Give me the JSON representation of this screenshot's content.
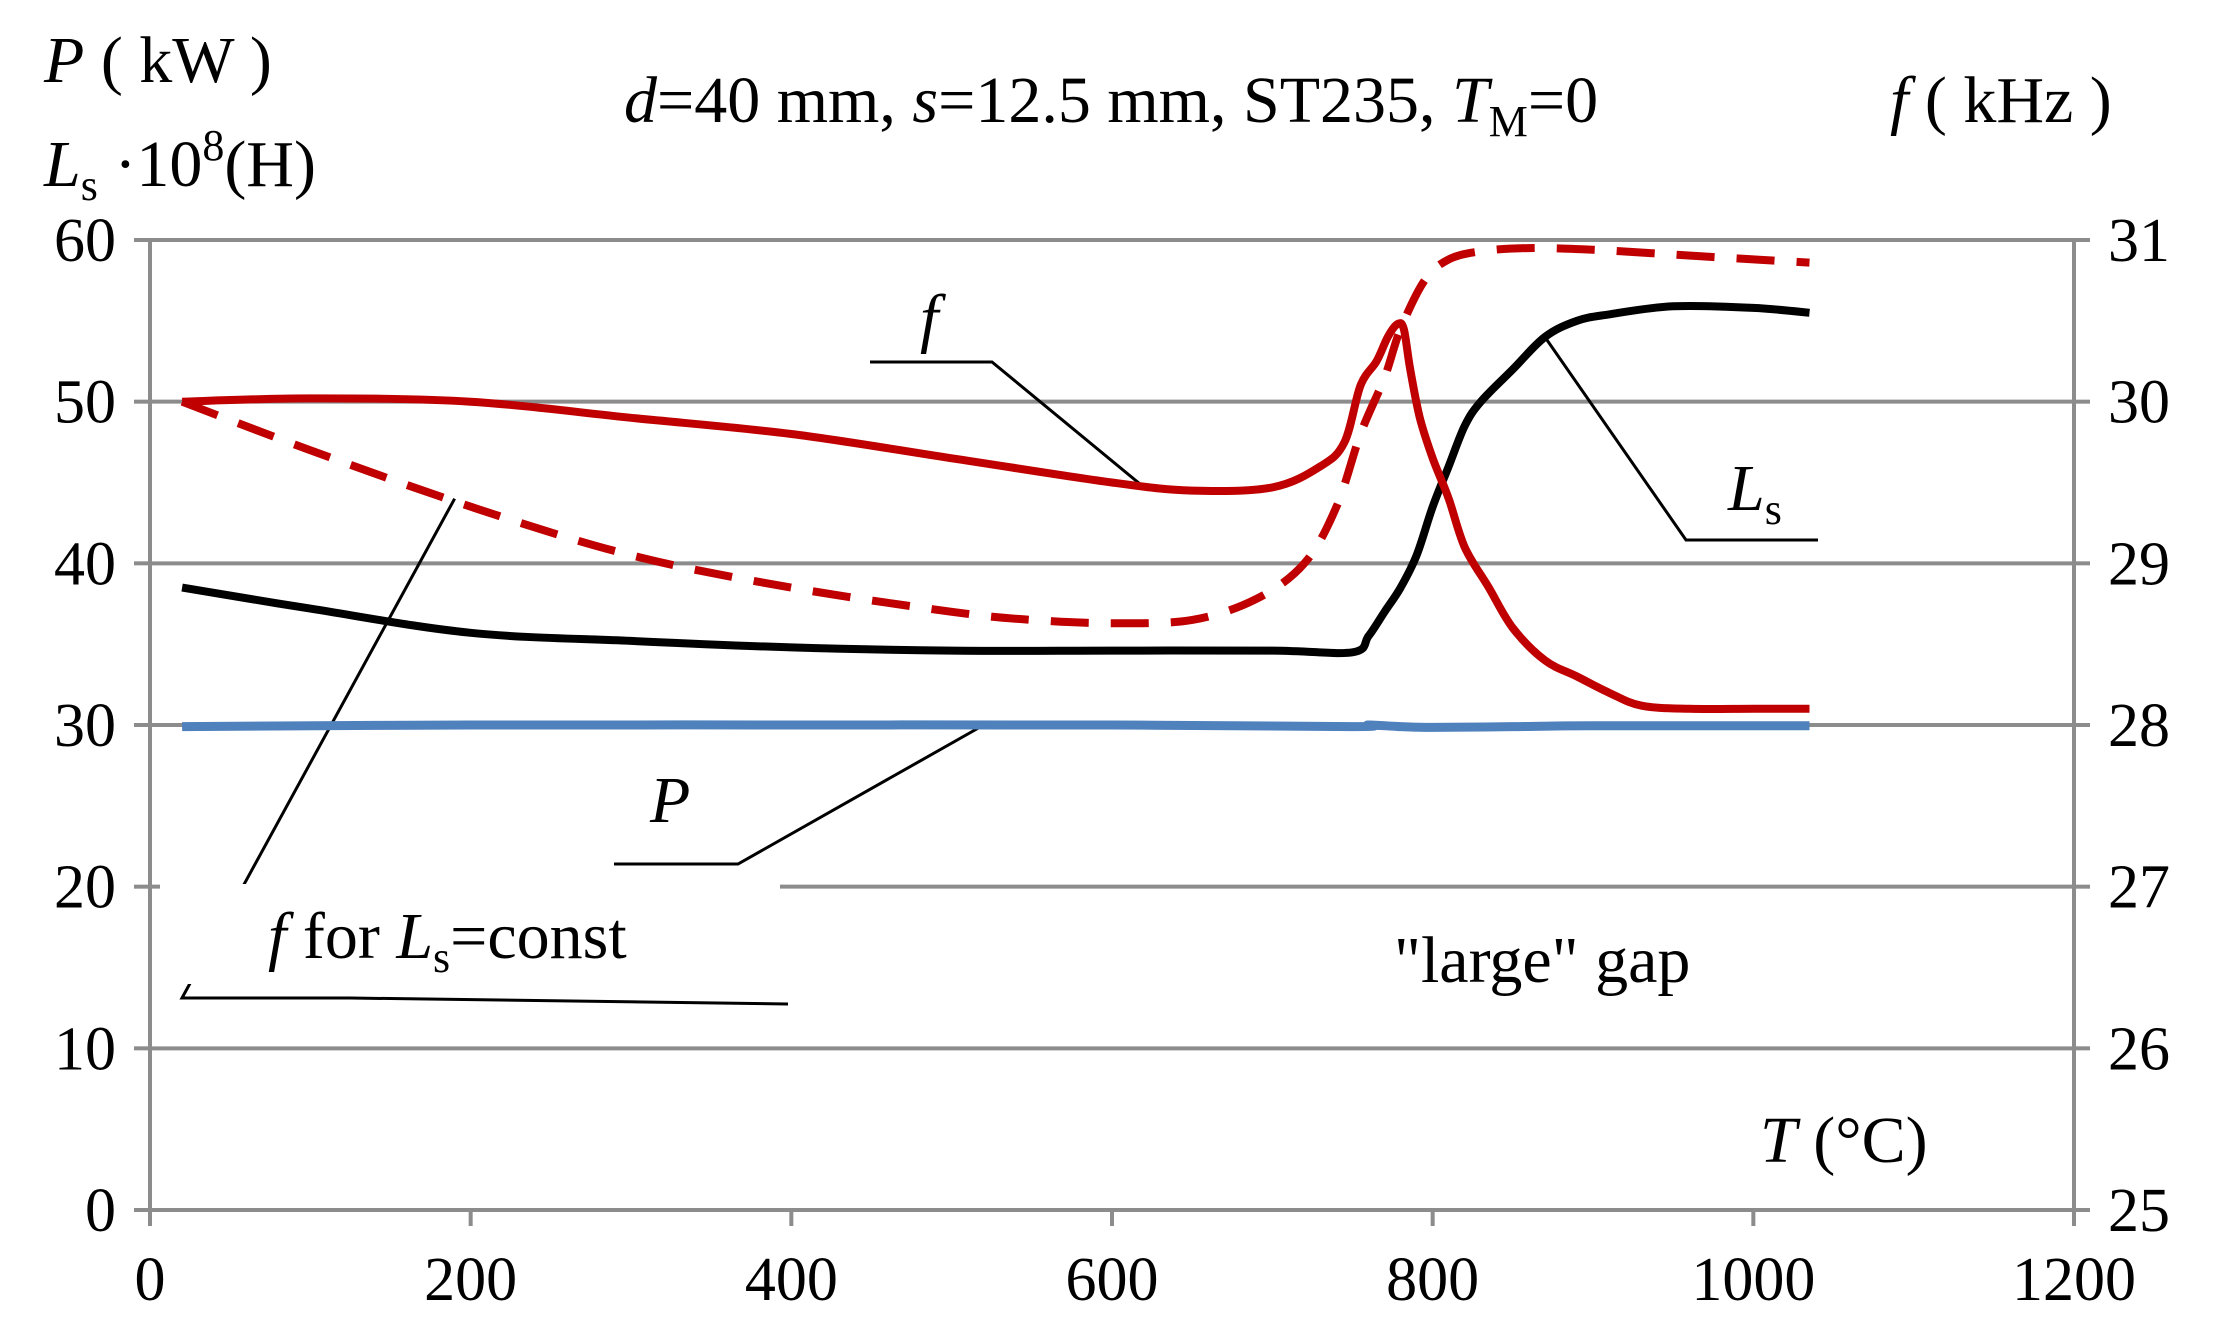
{
  "chart_data": {
    "type": "line",
    "title": "d=40 mm,  s=12.5 mm,  ST235, TM=0",
    "title_parts": {
      "d_sym": "d",
      "d_val": "=40 mm,  ",
      "s_sym": "s",
      "s_val": "=12.5 mm,  ST235, ",
      "t_sym": "T",
      "t_sub": "M",
      "t_val": "=0"
    },
    "left_axis_label": {
      "line1": {
        "sym": "P",
        "unit": " ( kW )"
      },
      "line2": {
        "sym": "L",
        "sub": "s",
        "mid": " ·10",
        "sup": "8",
        "unit": "(H)"
      }
    },
    "right_axis_label": {
      "sym": "f",
      "unit": " ( kHz )"
    },
    "xlabel": {
      "sym": "T",
      "unit": " (°C)"
    },
    "xlim": [
      0,
      1200
    ],
    "ylim_left": [
      0,
      60
    ],
    "ylim_right": [
      25,
      31
    ],
    "x_ticks": [
      0,
      200,
      400,
      600,
      800,
      1000,
      1200
    ],
    "y_left_ticks": [
      0,
      10,
      20,
      30,
      40,
      50,
      60
    ],
    "y_right_ticks": [
      25,
      26,
      27,
      28,
      29,
      30,
      31
    ],
    "grid": true,
    "annotation": "\"large\" gap",
    "series": [
      {
        "name": "f",
        "axis": "right",
        "color": "#c00000",
        "dash": false,
        "label": {
          "sym": "f"
        },
        "x": [
          20,
          100,
          200,
          300,
          400,
          500,
          600,
          650,
          700,
          730,
          745,
          755,
          765,
          772,
          778,
          782,
          786,
          792,
          800,
          810,
          820,
          835,
          850,
          870,
          890,
          910,
          930,
          960,
          1000,
          1035
        ],
        "y": [
          30.0,
          30.02,
          30.0,
          29.9,
          29.8,
          29.65,
          29.5,
          29.45,
          29.47,
          29.6,
          29.75,
          30.1,
          30.25,
          30.4,
          30.48,
          30.45,
          30.2,
          29.9,
          29.65,
          29.4,
          29.1,
          28.85,
          28.6,
          28.4,
          28.3,
          28.2,
          28.12,
          28.1,
          28.1,
          28.1
        ]
      },
      {
        "name": "f for Ls=const",
        "axis": "right",
        "color": "#c00000",
        "dash": true,
        "label": {
          "sym": "f",
          "mid": "  for  ",
          "sym2": "L",
          "sub": "s",
          "tail": "=const"
        },
        "x": [
          20,
          100,
          200,
          300,
          400,
          500,
          550,
          600,
          650,
          690,
          720,
          740,
          755,
          770,
          780,
          795,
          810,
          830,
          860,
          900,
          950,
          1000,
          1035
        ],
        "y": [
          30.0,
          29.7,
          29.35,
          29.05,
          28.85,
          28.7,
          28.65,
          28.63,
          28.65,
          28.78,
          29.0,
          29.35,
          29.8,
          30.15,
          30.45,
          30.75,
          30.88,
          30.93,
          30.95,
          30.94,
          30.91,
          30.88,
          30.86
        ]
      },
      {
        "name": "Ls",
        "axis": "left",
        "color": "#000000",
        "dash": false,
        "label": {
          "sym": "L",
          "sub": "s"
        },
        "x": [
          20,
          100,
          200,
          300,
          400,
          500,
          600,
          700,
          750,
          760,
          770,
          780,
          790,
          800,
          810,
          820,
          830,
          850,
          870,
          890,
          910,
          950,
          1000,
          1035
        ],
        "y": [
          38.5,
          37.2,
          35.7,
          35.2,
          34.8,
          34.6,
          34.6,
          34.6,
          34.5,
          35.5,
          37.0,
          38.5,
          40.5,
          43.5,
          46.0,
          48.5,
          50.0,
          52.0,
          54.0,
          55.0,
          55.4,
          55.9,
          55.8,
          55.5
        ]
      },
      {
        "name": "P",
        "axis": "left",
        "color": "#4f81bd",
        "dash": false,
        "label": {
          "sym": "P"
        },
        "x": [
          20,
          200,
          400,
          600,
          750,
          760,
          780,
          800,
          850,
          900,
          1000,
          1035
        ],
        "y": [
          29.9,
          30.0,
          30.0,
          30.0,
          29.9,
          30.0,
          29.9,
          29.85,
          29.9,
          29.95,
          29.95,
          29.95
        ]
      }
    ]
  }
}
